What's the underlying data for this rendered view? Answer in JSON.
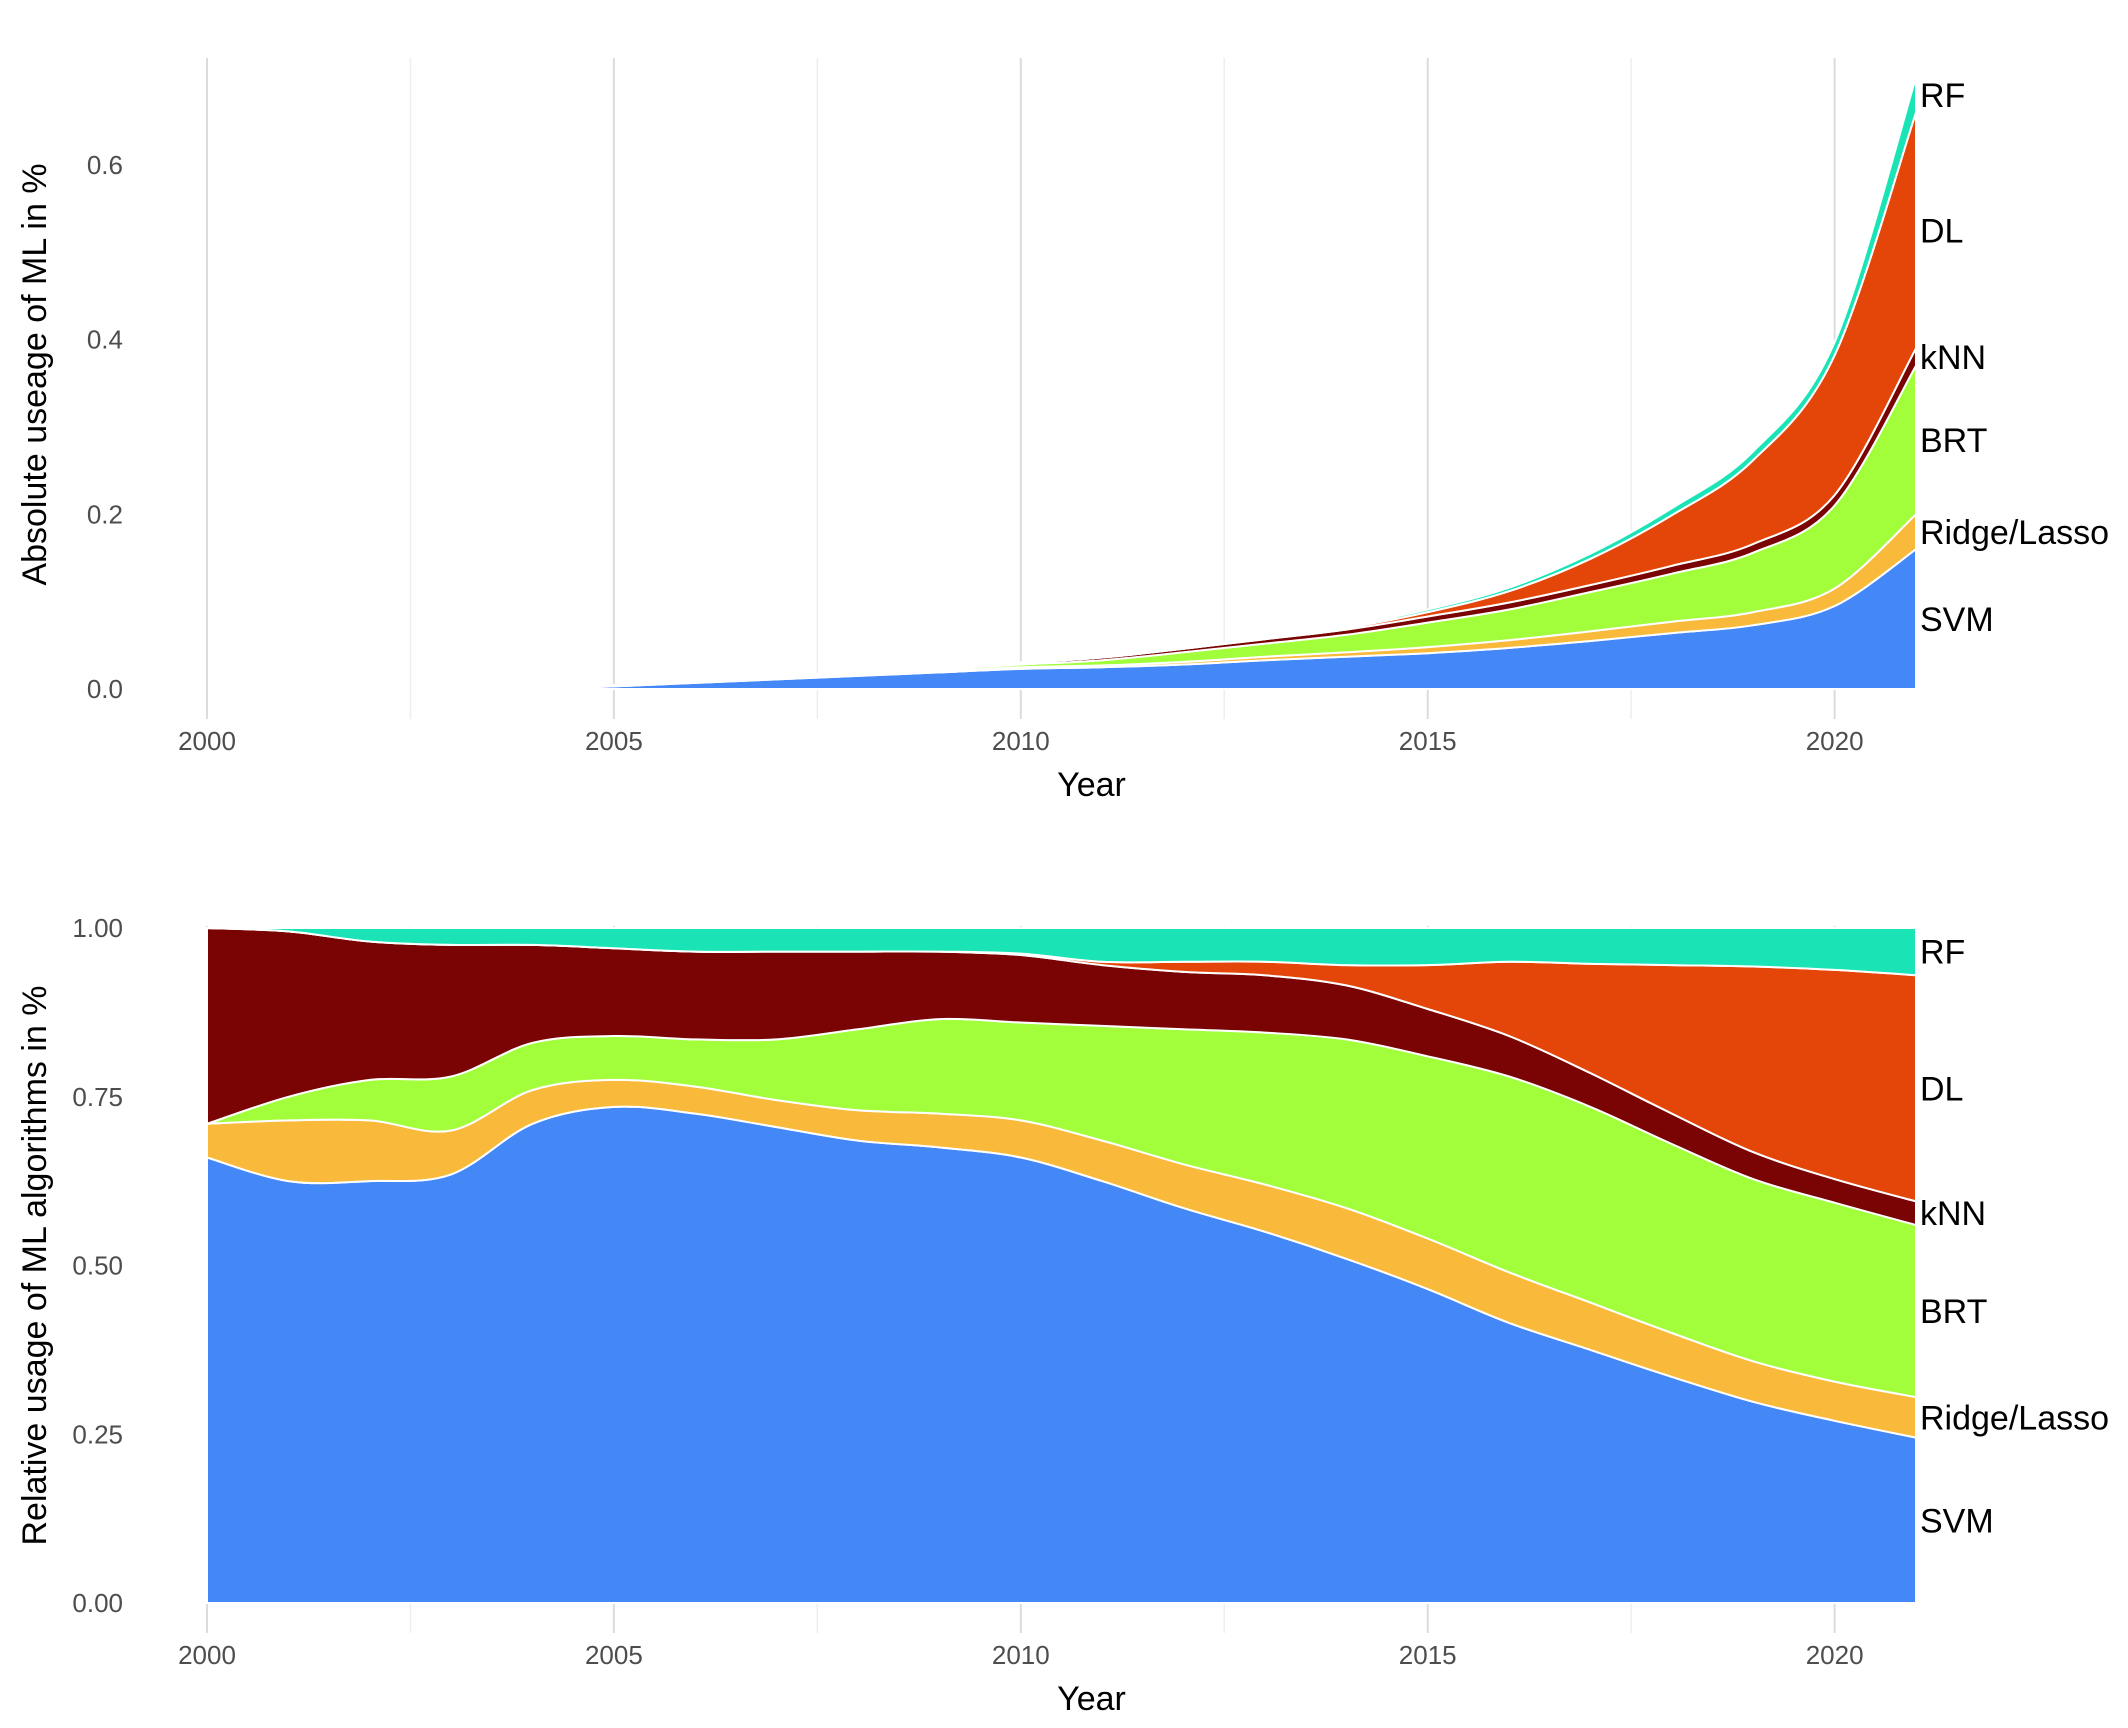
{
  "chart_data": [
    {
      "type": "area",
      "stacked": true,
      "xlabel": "Year",
      "ylabel": "Absolute useage of ML in %",
      "xlim": [
        2000,
        2021
      ],
      "ylim": [
        0,
        0.72
      ],
      "xticks": [
        2000,
        2005,
        2010,
        2015,
        2020
      ],
      "yticks": [
        0.0,
        0.2,
        0.4,
        0.6
      ],
      "ytick_labels": [
        "0.0",
        "0.2",
        "0.4",
        "0.6"
      ],
      "grid": true,
      "x": [
        2004,
        2005,
        2006,
        2007,
        2008,
        2009,
        2010,
        2011,
        2012,
        2013,
        2014,
        2015,
        2016,
        2017,
        2018,
        2019,
        2020,
        2021
      ],
      "series": [
        {
          "name": "SVM",
          "color": "#4487F7",
          "values": [
            0.0,
            0.003,
            0.007,
            0.011,
            0.015,
            0.019,
            0.023,
            0.025,
            0.028,
            0.033,
            0.037,
            0.041,
            0.047,
            0.055,
            0.064,
            0.073,
            0.095,
            0.16
          ]
        },
        {
          "name": "Ridge/Lasso",
          "color": "#F9B93A",
          "values": [
            0.0,
            0.0003,
            0.0005,
            0.0008,
            0.001,
            0.0015,
            0.002,
            0.002,
            0.003,
            0.004,
            0.005,
            0.007,
            0.009,
            0.011,
            0.013,
            0.015,
            0.02,
            0.04
          ]
        },
        {
          "name": "BRT",
          "color": "#A2FD3B",
          "values": [
            0.0,
            0.0002,
            0.0005,
            0.001,
            0.0015,
            0.002,
            0.003,
            0.006,
            0.011,
            0.015,
            0.02,
            0.028,
            0.035,
            0.045,
            0.055,
            0.068,
            0.095,
            0.17
          ]
        },
        {
          "name": "kNN",
          "color": "#7A0403",
          "values": [
            0.0,
            0.0008,
            0.0012,
            0.0015,
            0.002,
            0.002,
            0.002,
            0.003,
            0.004,
            0.005,
            0.006,
            0.007,
            0.008,
            0.008,
            0.009,
            0.01,
            0.012,
            0.02
          ]
        },
        {
          "name": "DL",
          "color": "#E4460A",
          "values": [
            0.0,
            0.0,
            0.0,
            0.0,
            0.0,
            0.0,
            0.0,
            0.0,
            0.0,
            0.001,
            0.002,
            0.005,
            0.013,
            0.03,
            0.058,
            0.096,
            0.16,
            0.27
          ]
        },
        {
          "name": "RF",
          "color": "#1AE4B6",
          "values": [
            0.0,
            0.0001,
            0.0002,
            0.0003,
            0.0004,
            0.0005,
            0.0006,
            0.0008,
            0.001,
            0.0015,
            0.002,
            0.003,
            0.004,
            0.006,
            0.008,
            0.01,
            0.015,
            0.04
          ]
        }
      ]
    },
    {
      "type": "area",
      "stacked": true,
      "xlabel": "Year",
      "ylabel": "Relative usage of ML algorithms in %",
      "xlim": [
        2000,
        2021
      ],
      "ylim": [
        0,
        1
      ],
      "xticks": [
        2000,
        2005,
        2010,
        2015,
        2020
      ],
      "yticks": [
        0.0,
        0.25,
        0.5,
        0.75,
        1.0
      ],
      "ytick_labels": [
        "0.00",
        "0.25",
        "0.50",
        "0.75",
        "1.00"
      ],
      "grid": true,
      "x": [
        2000,
        2001,
        2002,
        2003,
        2004,
        2005,
        2006,
        2007,
        2008,
        2009,
        2010,
        2011,
        2012,
        2013,
        2014,
        2015,
        2016,
        2017,
        2018,
        2019,
        2020,
        2021
      ],
      "series": [
        {
          "name": "SVM",
          "color": "#4487F7",
          "values": [
            0.66,
            0.625,
            0.625,
            0.635,
            0.71,
            0.735,
            0.725,
            0.705,
            0.685,
            0.675,
            0.66,
            0.625,
            0.585,
            0.55,
            0.51,
            0.465,
            0.415,
            0.375,
            0.335,
            0.298,
            0.27,
            0.245
          ]
        },
        {
          "name": "Ridge/Lasso",
          "color": "#F9B93A",
          "values": [
            0.05,
            0.09,
            0.09,
            0.065,
            0.05,
            0.04,
            0.04,
            0.04,
            0.045,
            0.05,
            0.055,
            0.06,
            0.065,
            0.07,
            0.075,
            0.075,
            0.075,
            0.07,
            0.065,
            0.06,
            0.058,
            0.06
          ]
        },
        {
          "name": "BRT",
          "color": "#A2FD3B",
          "values": [
            0.0,
            0.035,
            0.06,
            0.08,
            0.07,
            0.065,
            0.07,
            0.09,
            0.12,
            0.14,
            0.145,
            0.17,
            0.2,
            0.225,
            0.25,
            0.27,
            0.29,
            0.29,
            0.28,
            0.27,
            0.265,
            0.255
          ]
        },
        {
          "name": "kNN",
          "color": "#7A0403",
          "values": [
            0.29,
            0.245,
            0.205,
            0.195,
            0.145,
            0.13,
            0.13,
            0.13,
            0.115,
            0.1,
            0.1,
            0.09,
            0.085,
            0.085,
            0.08,
            0.07,
            0.06,
            0.05,
            0.045,
            0.04,
            0.035,
            0.035
          ]
        },
        {
          "name": "DL",
          "color": "#E4460A",
          "values": [
            0.0,
            0.0,
            0.0,
            0.0,
            0.0,
            0.0,
            0.0,
            0.0,
            0.0,
            0.0,
            0.002,
            0.005,
            0.015,
            0.02,
            0.03,
            0.065,
            0.11,
            0.162,
            0.22,
            0.275,
            0.31,
            0.335
          ]
        },
        {
          "name": "RF",
          "color": "#1AE4B6",
          "values": [
            0.0,
            0.005,
            0.02,
            0.025,
            0.025,
            0.03,
            0.035,
            0.035,
            0.035,
            0.035,
            0.038,
            0.05,
            0.05,
            0.05,
            0.055,
            0.055,
            0.05,
            0.053,
            0.055,
            0.057,
            0.062,
            0.07
          ]
        }
      ]
    }
  ]
}
